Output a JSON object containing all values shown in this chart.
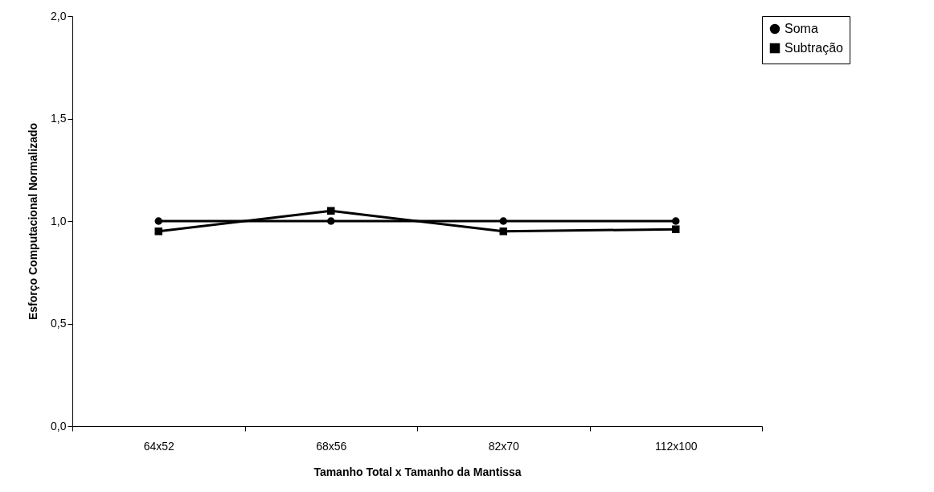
{
  "chart_data": {
    "type": "line",
    "xlabel": "Tamanho Total x Tamanho da Mantissa",
    "ylabel": "Esforço Computacional Normalizado",
    "categories": [
      "64x52",
      "68x56",
      "82x70",
      "112x100"
    ],
    "series": [
      {
        "name": "Soma",
        "color": "#000000",
        "marker": "circle",
        "values": [
          1.0,
          1.0,
          1.0,
          1.0
        ]
      },
      {
        "name": "Subtração",
        "color": "#000000",
        "marker": "square",
        "values": [
          0.95,
          1.05,
          0.95,
          0.96
        ]
      }
    ],
    "ylim": [
      0,
      2
    ],
    "yticks": [
      {
        "value": 0,
        "label": "0,0"
      },
      {
        "value": 0.5,
        "label": "0,5"
      },
      {
        "value": 1,
        "label": "1,0"
      },
      {
        "value": 1.5,
        "label": "1,5"
      },
      {
        "value": 2,
        "label": "2,0"
      }
    ],
    "grid": false,
    "legend": "right"
  }
}
